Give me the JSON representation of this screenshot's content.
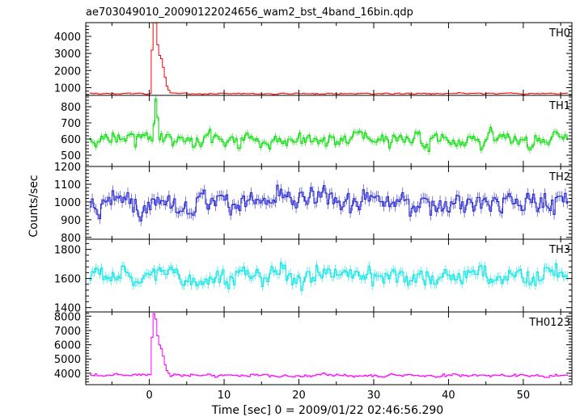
{
  "chart_data": {
    "type": "line",
    "title": "ae703049010_20090122024656_wam2_bst_4band_16bin.qdp",
    "xlabel": "Time [sec] 0 = 2009/01/22 02:46:56.290",
    "ylabel": "Counts/sec",
    "xlim": [
      -8.5,
      56.5
    ],
    "x_ticks": [
      "0",
      "10",
      "20",
      "30",
      "40",
      "50"
    ],
    "x_tick_values": [
      0,
      10,
      20,
      30,
      40,
      50
    ],
    "bin_sec": 0.25,
    "grid": false,
    "panels": [
      {
        "name": "TH0",
        "color": "#ff0000",
        "ylim": [
          550,
          4800
        ],
        "y_ticks": [
          "1000",
          "2000",
          "3000",
          "4000"
        ],
        "y_tick_values": [
          1000,
          2000,
          3000,
          4000
        ],
        "baseline": 650,
        "noise": 40,
        "burst": [
          [
            0,
            650
          ],
          [
            0.25,
            3200
          ],
          [
            0.5,
            4800
          ],
          [
            0.75,
            4800
          ],
          [
            1.0,
            3500
          ],
          [
            1.25,
            2900
          ],
          [
            1.5,
            2700
          ],
          [
            1.75,
            2200
          ],
          [
            2.0,
            1600
          ],
          [
            2.25,
            1100
          ],
          [
            2.5,
            850
          ],
          [
            2.75,
            700
          ]
        ]
      },
      {
        "name": "TH1",
        "color": "#00dd00",
        "ylim": [
          430,
          870
        ],
        "y_ticks": [
          "500",
          "600",
          "700",
          "800"
        ],
        "y_tick_values": [
          500,
          600,
          700,
          800
        ],
        "baseline": 600,
        "noise": 45,
        "burst": [
          [
            0.5,
            680
          ],
          [
            0.75,
            850
          ],
          [
            1.0,
            720
          ]
        ]
      },
      {
        "name": "TH2",
        "color": "#2020d0",
        "ylim": [
          790,
          1200
        ],
        "y_ticks": [
          "800",
          "900",
          "1000",
          "1100",
          "1200"
        ],
        "y_tick_values": [
          800,
          900,
          1000,
          1100,
          1200
        ],
        "baseline": 1000,
        "noise": 65,
        "burst": []
      },
      {
        "name": "TH3",
        "color": "#00e5e5",
        "ylim": [
          1370,
          1870
        ],
        "y_ticks": [
          "1400",
          "1600",
          "1800"
        ],
        "y_tick_values": [
          1400,
          1600,
          1800
        ],
        "baseline": 1620,
        "noise": 70,
        "burst": []
      },
      {
        "name": "TH0123",
        "color": "#ff00ff",
        "ylim": [
          3200,
          8300
        ],
        "y_ticks": [
          "4000",
          "5000",
          "6000",
          "7000",
          "8000"
        ],
        "y_tick_values": [
          4000,
          5000,
          6000,
          7000,
          8000
        ],
        "baseline": 3850,
        "noise": 110,
        "burst": [
          [
            0,
            3900
          ],
          [
            0.25,
            6500
          ],
          [
            0.5,
            8200
          ],
          [
            0.75,
            7800
          ],
          [
            1.0,
            6600
          ],
          [
            1.25,
            6000
          ],
          [
            1.5,
            5700
          ],
          [
            1.75,
            5200
          ],
          [
            2.0,
            4600
          ],
          [
            2.25,
            4200
          ],
          [
            2.5,
            4000
          ]
        ]
      }
    ]
  }
}
